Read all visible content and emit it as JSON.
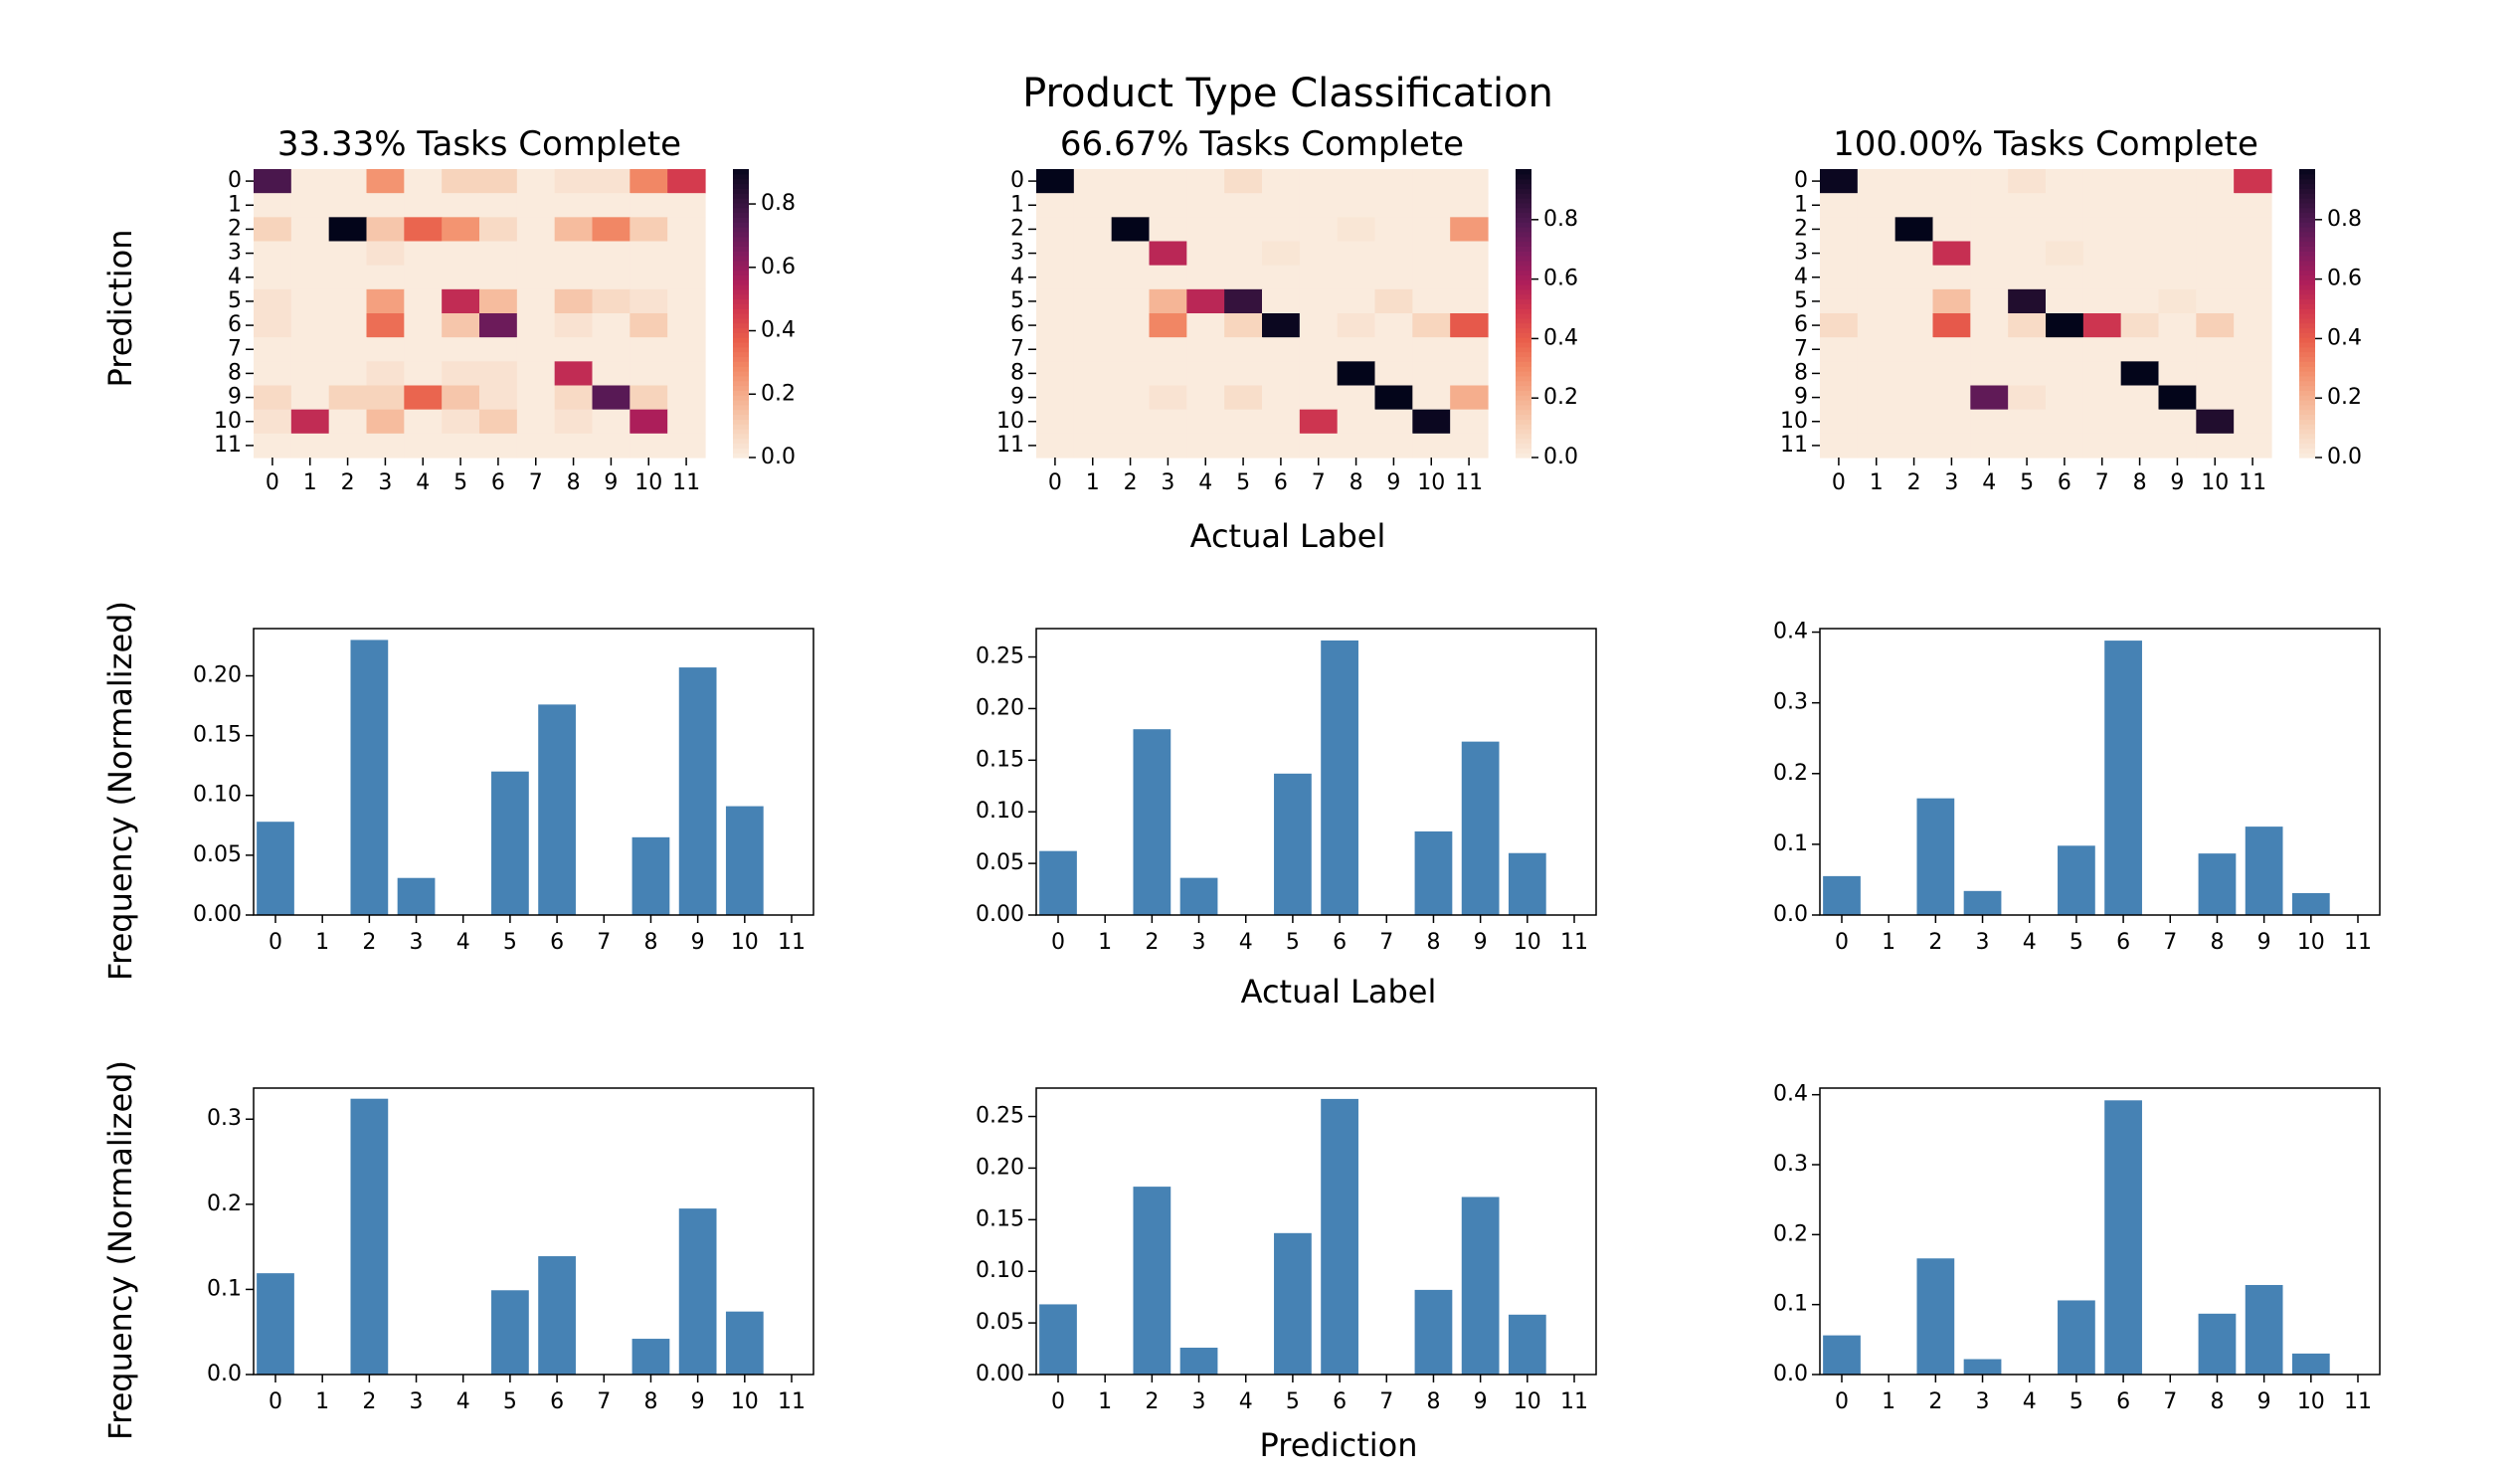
{
  "figure": {
    "title": "Product Type Classification",
    "heatmap_row_label": "Prediction",
    "heatmap_col_label": "Actual Label",
    "bar_row1_ylabel": "Frequency (Normalized)",
    "bar_row2_ylabel": "Frequency (Normalized)",
    "bar_row1_xlabel": "Actual Label",
    "bar_row2_xlabel": "Prediction"
  },
  "chart_data": [
    {
      "type": "heatmap",
      "title": "33.33% Tasks Complete",
      "colormap": "rocket_r",
      "x_ticks": [
        "0",
        "1",
        "2",
        "3",
        "4",
        "5",
        "6",
        "7",
        "8",
        "9",
        "10",
        "11"
      ],
      "y_ticks": [
        "0",
        "1",
        "2",
        "3",
        "4",
        "5",
        "6",
        "7",
        "8",
        "9",
        "10",
        "11"
      ],
      "colorbar_ticks": [
        "0.0",
        "0.2",
        "0.4",
        "0.6",
        "0.8"
      ],
      "vmin": 0,
      "vmax": 0.91,
      "matrix": [
        [
          0.75,
          0,
          0,
          0.25,
          0,
          0.08,
          0.08,
          0,
          0.03,
          0.03,
          0.28,
          0.45
        ],
        [
          0,
          0,
          0,
          0,
          0,
          0,
          0,
          0,
          0,
          0,
          0,
          0
        ],
        [
          0.08,
          0,
          0.91,
          0.12,
          0.35,
          0.25,
          0.06,
          0,
          0.15,
          0.28,
          0.1,
          0
        ],
        [
          0,
          0,
          0,
          0.03,
          0,
          0,
          0,
          0,
          0,
          0,
          0,
          0
        ],
        [
          0,
          0,
          0,
          0,
          0,
          0,
          0,
          0,
          0,
          0,
          0,
          0
        ],
        [
          0.03,
          0,
          0,
          0.22,
          0,
          0.5,
          0.15,
          0,
          0.12,
          0.06,
          0.03,
          0
        ],
        [
          0.03,
          0,
          0,
          0.33,
          0,
          0.12,
          0.68,
          0,
          0.03,
          0,
          0.1,
          0
        ],
        [
          0,
          0,
          0,
          0,
          0,
          0,
          0,
          0,
          0,
          0,
          0,
          0
        ],
        [
          0,
          0,
          0,
          0.03,
          0,
          0.03,
          0.03,
          0,
          0.5,
          0,
          0,
          0
        ],
        [
          0.06,
          0,
          0.08,
          0.08,
          0.35,
          0.12,
          0.03,
          0,
          0.06,
          0.72,
          0.08,
          0
        ],
        [
          0.03,
          0.5,
          0,
          0.15,
          0,
          0.03,
          0.1,
          0,
          0.03,
          0,
          0.55,
          0
        ],
        [
          0,
          0,
          0,
          0,
          0,
          0,
          0,
          0,
          0,
          0,
          0,
          0
        ]
      ]
    },
    {
      "type": "heatmap",
      "title": "66.67% Tasks Complete",
      "colormap": "rocket_r",
      "x_ticks": [
        "0",
        "1",
        "2",
        "3",
        "4",
        "5",
        "6",
        "7",
        "8",
        "9",
        "10",
        "11"
      ],
      "y_ticks": [
        "0",
        "1",
        "2",
        "3",
        "4",
        "5",
        "6",
        "7",
        "8",
        "9",
        "10",
        "11"
      ],
      "colorbar_ticks": [
        "0.0",
        "0.2",
        "0.4",
        "0.6",
        "0.8"
      ],
      "vmin": 0,
      "vmax": 0.97,
      "matrix": [
        [
          0.97,
          0,
          0,
          0,
          0,
          0.05,
          0,
          0,
          0,
          0,
          0,
          0
        ],
        [
          0,
          0,
          0,
          0,
          0,
          0,
          0,
          0,
          0,
          0,
          0,
          0
        ],
        [
          0,
          0,
          0.97,
          0,
          0,
          0,
          0,
          0,
          0.02,
          0,
          0,
          0.25
        ],
        [
          0,
          0,
          0,
          0.55,
          0,
          0,
          0.02,
          0,
          0,
          0,
          0,
          0
        ],
        [
          0,
          0,
          0,
          0,
          0,
          0,
          0,
          0,
          0,
          0,
          0,
          0
        ],
        [
          0,
          0,
          0,
          0.18,
          0.55,
          0.85,
          0,
          0,
          0,
          0.05,
          0,
          0
        ],
        [
          0,
          0,
          0,
          0.3,
          0,
          0.08,
          0.95,
          0,
          0.03,
          0,
          0.08,
          0.4
        ],
        [
          0,
          0,
          0,
          0,
          0,
          0,
          0,
          0,
          0,
          0,
          0,
          0
        ],
        [
          0,
          0,
          0,
          0,
          0,
          0,
          0,
          0,
          0.97,
          0,
          0,
          0
        ],
        [
          0,
          0,
          0,
          0.03,
          0,
          0.05,
          0,
          0,
          0,
          0.97,
          0,
          0.2
        ],
        [
          0,
          0,
          0,
          0,
          0,
          0,
          0,
          0.5,
          0,
          0,
          0.95,
          0
        ],
        [
          0,
          0,
          0,
          0,
          0,
          0,
          0,
          0,
          0,
          0,
          0,
          0
        ]
      ]
    },
    {
      "type": "heatmap",
      "title": "100.00% Tasks Complete",
      "colormap": "rocket_r",
      "x_ticks": [
        "0",
        "1",
        "2",
        "3",
        "4",
        "5",
        "6",
        "7",
        "8",
        "9",
        "10",
        "11"
      ],
      "y_ticks": [
        "0",
        "1",
        "2",
        "3",
        "4",
        "5",
        "6",
        "7",
        "8",
        "9",
        "10",
        "11"
      ],
      "colorbar_ticks": [
        "0.0",
        "0.2",
        "0.4",
        "0.6",
        "0.8"
      ],
      "vmin": 0,
      "vmax": 0.97,
      "matrix": [
        [
          0.95,
          0,
          0,
          0,
          0,
          0.03,
          0,
          0,
          0,
          0,
          0,
          0.5
        ],
        [
          0,
          0,
          0,
          0,
          0,
          0,
          0,
          0,
          0,
          0,
          0,
          0
        ],
        [
          0,
          0,
          0.97,
          0,
          0,
          0,
          0,
          0,
          0,
          0,
          0,
          0
        ],
        [
          0,
          0,
          0,
          0.52,
          0,
          0,
          0.02,
          0,
          0,
          0,
          0,
          0
        ],
        [
          0,
          0,
          0,
          0,
          0,
          0,
          0,
          0,
          0,
          0,
          0,
          0
        ],
        [
          0,
          0,
          0,
          0.15,
          0,
          0.9,
          0,
          0,
          0,
          0.02,
          0,
          0
        ],
        [
          0.06,
          0,
          0,
          0.4,
          0,
          0.06,
          0.97,
          0.5,
          0.05,
          0,
          0.1,
          0
        ],
        [
          0,
          0,
          0,
          0,
          0,
          0,
          0,
          0,
          0,
          0,
          0,
          0
        ],
        [
          0,
          0,
          0,
          0,
          0,
          0,
          0,
          0,
          0.97,
          0,
          0,
          0
        ],
        [
          0,
          0,
          0,
          0,
          0.75,
          0.03,
          0,
          0,
          0,
          0.97,
          0,
          0
        ],
        [
          0,
          0,
          0,
          0,
          0,
          0,
          0,
          0,
          0,
          0,
          0.9,
          0
        ],
        [
          0,
          0,
          0,
          0,
          0,
          0,
          0,
          0,
          0,
          0,
          0,
          0
        ]
      ]
    },
    {
      "type": "bar",
      "categories": [
        "0",
        "1",
        "2",
        "3",
        "4",
        "5",
        "6",
        "7",
        "8",
        "9",
        "10",
        "11"
      ],
      "values": [
        0.078,
        0,
        0.23,
        0.031,
        0,
        0.12,
        0.176,
        0,
        0.065,
        0.207,
        0.091,
        0
      ],
      "ylim": [
        0,
        0.2395
      ],
      "y_ticks": [
        "0.00",
        "0.05",
        "0.10",
        "0.15",
        "0.20"
      ],
      "color": "#4682b4"
    },
    {
      "type": "bar",
      "categories": [
        "0",
        "1",
        "2",
        "3",
        "4",
        "5",
        "6",
        "7",
        "8",
        "9",
        "10",
        "11"
      ],
      "values": [
        0.062,
        0,
        0.18,
        0.036,
        0,
        0.137,
        0.266,
        0,
        0.081,
        0.168,
        0.06,
        0
      ],
      "ylim": [
        0,
        0.2775
      ],
      "y_ticks": [
        "0.00",
        "0.05",
        "0.10",
        "0.15",
        "0.20",
        "0.25"
      ],
      "color": "#4682b4"
    },
    {
      "type": "bar",
      "categories": [
        "0",
        "1",
        "2",
        "3",
        "4",
        "5",
        "6",
        "7",
        "8",
        "9",
        "10",
        "11"
      ],
      "values": [
        0.055,
        0,
        0.165,
        0.034,
        0,
        0.098,
        0.388,
        0,
        0.087,
        0.125,
        0.031,
        0
      ],
      "ylim": [
        0,
        0.405
      ],
      "y_ticks": [
        "0.0",
        "0.1",
        "0.2",
        "0.3",
        "0.4"
      ],
      "color": "#4682b4"
    },
    {
      "type": "bar",
      "categories": [
        "0",
        "1",
        "2",
        "3",
        "4",
        "5",
        "6",
        "7",
        "8",
        "9",
        "10",
        "11"
      ],
      "values": [
        0.119,
        0,
        0.324,
        0,
        0,
        0.099,
        0.139,
        0,
        0.042,
        0.195,
        0.074,
        0
      ],
      "ylim": [
        0,
        0.3365
      ],
      "y_ticks": [
        "0.0",
        "0.1",
        "0.2",
        "0.3"
      ],
      "color": "#4682b4"
    },
    {
      "type": "bar",
      "categories": [
        "0",
        "1",
        "2",
        "3",
        "4",
        "5",
        "6",
        "7",
        "8",
        "9",
        "10",
        "11"
      ],
      "values": [
        0.068,
        0,
        0.182,
        0.026,
        0,
        0.137,
        0.267,
        0,
        0.082,
        0.172,
        0.058,
        0
      ],
      "ylim": [
        0,
        0.2775
      ],
      "y_ticks": [
        "0.00",
        "0.05",
        "0.10",
        "0.15",
        "0.20",
        "0.25"
      ],
      "color": "#4682b4"
    },
    {
      "type": "bar",
      "categories": [
        "0",
        "1",
        "2",
        "3",
        "4",
        "5",
        "6",
        "7",
        "8",
        "9",
        "10",
        "11"
      ],
      "values": [
        0.056,
        0,
        0.166,
        0.022,
        0,
        0.106,
        0.392,
        0,
        0.087,
        0.128,
        0.03,
        0
      ],
      "ylim": [
        0,
        0.4095
      ],
      "y_ticks": [
        "0.0",
        "0.1",
        "0.2",
        "0.3",
        "0.4"
      ],
      "color": "#4682b4"
    }
  ]
}
